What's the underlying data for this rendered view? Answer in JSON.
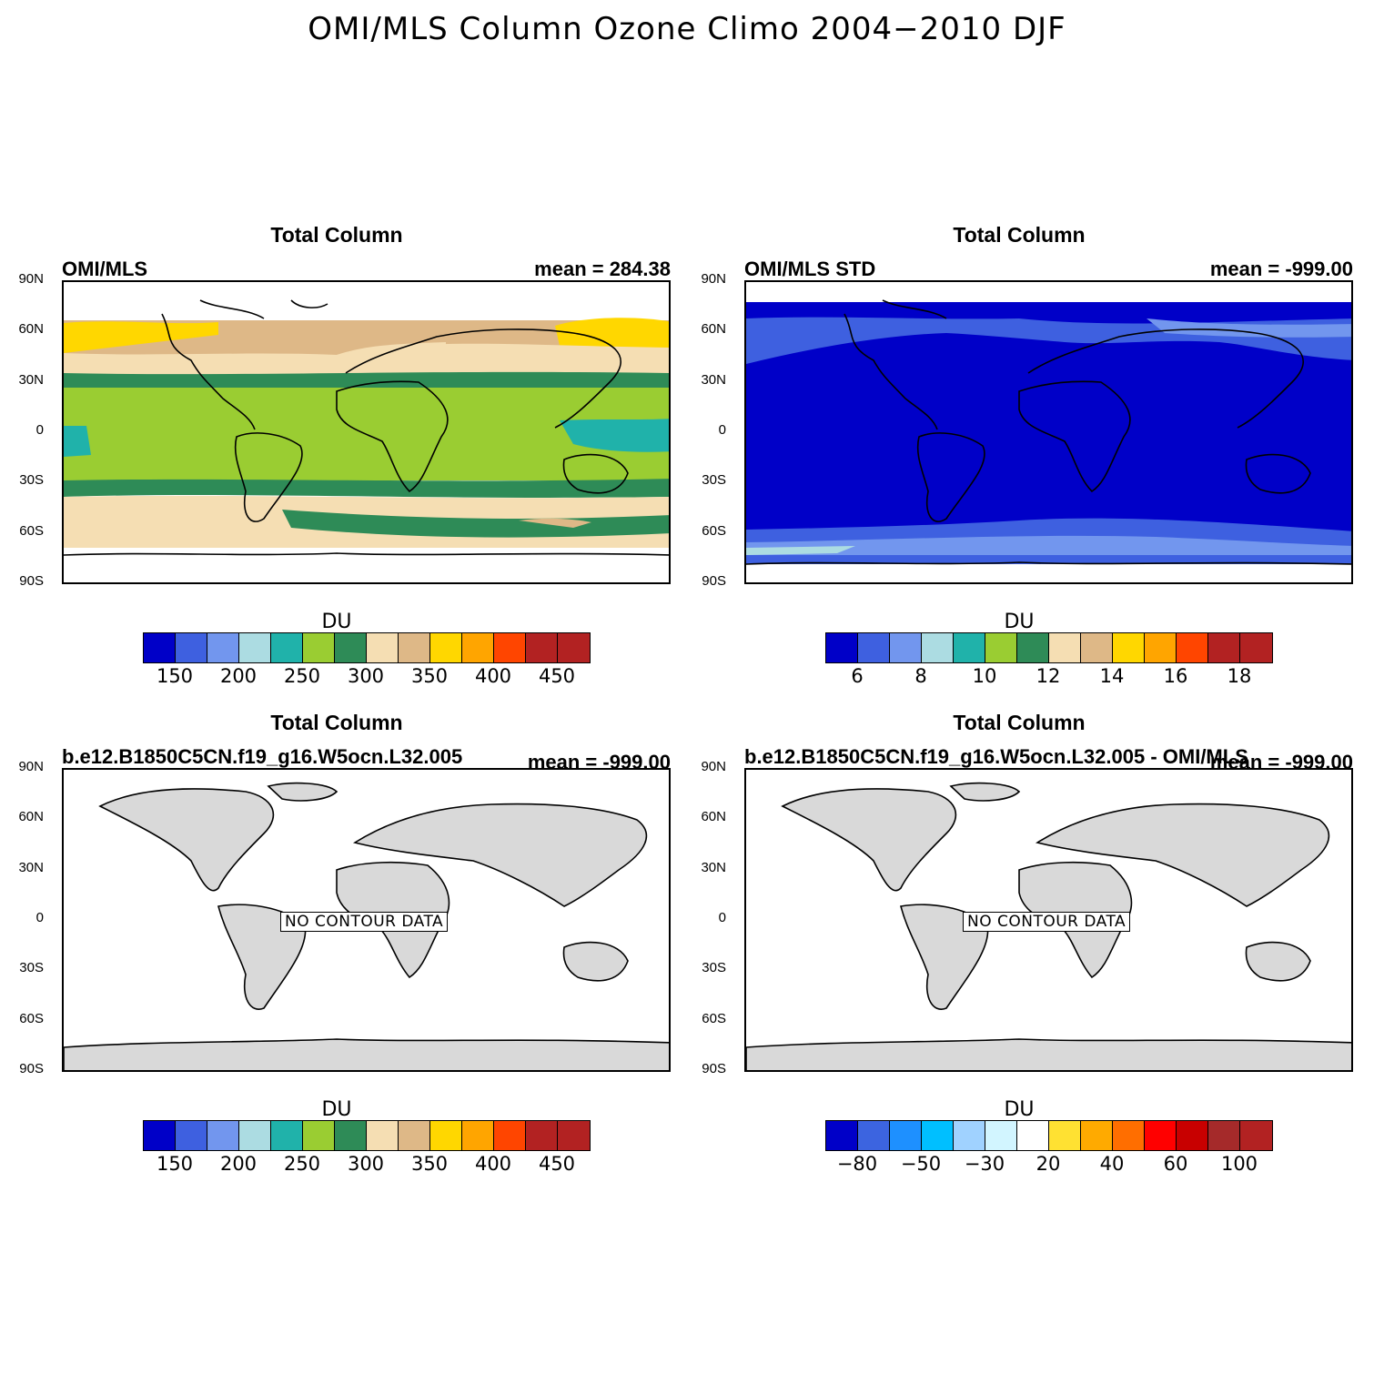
{
  "title": "OMI/MLS Column Ozone Climo 2004−2010 DJF",
  "latitude_labels": [
    "90N",
    "60N",
    "30N",
    "0",
    "30S",
    "60S",
    "90S"
  ],
  "panels": [
    {
      "title": "Total Column",
      "left_string": "OMI/MLS",
      "right_string": "mean = 284.38",
      "units": "DU",
      "colorbar_labels": [
        "150",
        "200",
        "250",
        "300",
        "350",
        "400",
        "450"
      ],
      "colorbar_colors": [
        "#0000c8",
        "#3e60e0",
        "#7296ee",
        "#acdce2",
        "#20b2aa",
        "#9acd32",
        "#2e8b57",
        "#f5deb3",
        "#deb887",
        "#ffd700",
        "#ffa500",
        "#ff4500",
        "#b22222",
        "#b22222"
      ],
      "no_data_label": ""
    },
    {
      "title": "Total Column",
      "left_string": "OMI/MLS STD",
      "right_string": "mean = -999.00",
      "units": "DU",
      "colorbar_labels": [
        "6",
        "8",
        "10",
        "12",
        "14",
        "16",
        "18"
      ],
      "colorbar_colors": [
        "#0000c8",
        "#3e60e0",
        "#7296ee",
        "#acdce2",
        "#20b2aa",
        "#9acd32",
        "#2e8b57",
        "#f5deb3",
        "#deb887",
        "#ffd700",
        "#ffa500",
        "#ff4500",
        "#b22222",
        "#b22222"
      ],
      "no_data_label": ""
    },
    {
      "title": "Total Column",
      "left_string": "b.e12.B1850C5CN.f19_g16.W5ocn.L32.005",
      "right_string": "mean = -999.00",
      "units": "DU",
      "colorbar_labels": [
        "150",
        "200",
        "250",
        "300",
        "350",
        "400",
        "450"
      ],
      "colorbar_colors": [
        "#0000c8",
        "#3e60e0",
        "#7296ee",
        "#acdce2",
        "#20b2aa",
        "#9acd32",
        "#2e8b57",
        "#f5deb3",
        "#deb887",
        "#ffd700",
        "#ffa500",
        "#ff4500",
        "#b22222",
        "#b22222"
      ],
      "no_data_label": "NO CONTOUR DATA"
    },
    {
      "title": "Total Column",
      "left_string": "b.e12.B1850C5CN.f19_g16.W5ocn.L32.005 - OMI/MLS",
      "right_string": "mean = -999.00",
      "units": "DU",
      "colorbar_labels": [
        "−80",
        "−50",
        "−30",
        "20",
        "40",
        "60",
        "100"
      ],
      "colorbar_colors": [
        "#0000c8",
        "#3c64e0",
        "#1e90ff",
        "#00bfff",
        "#a0d2ff",
        "#d2f5ff",
        "#ffffff",
        "#ffe132",
        "#ffaa00",
        "#ff6e00",
        "#ff0000",
        "#c80000",
        "#a52a2a",
        "#b22222"
      ],
      "no_data_label": "NO CONTOUR DATA"
    }
  ],
  "colors": {
    "land_fill": "#d9d9d9",
    "coastline": "#000000"
  }
}
